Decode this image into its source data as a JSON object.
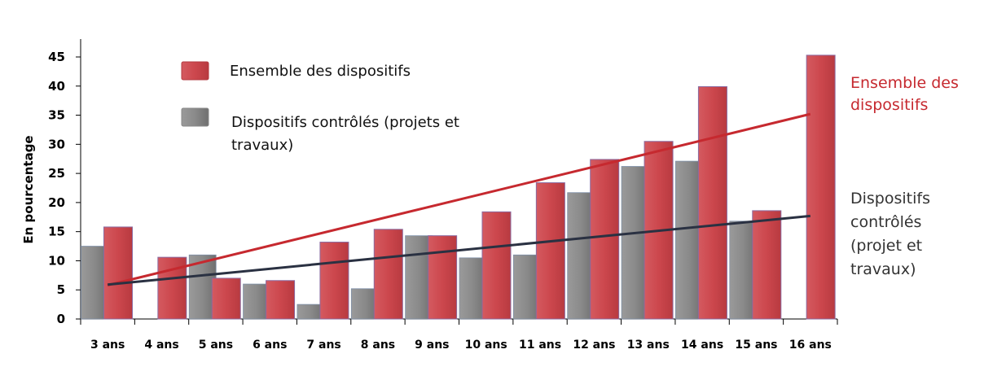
{
  "chart_data": {
    "type": "bar",
    "ylabel": "En pourcentage",
    "xlabel": "",
    "ylim": [
      0,
      45
    ],
    "yticks": [
      0,
      5,
      10,
      15,
      20,
      25,
      30,
      35,
      40,
      45
    ],
    "grid": false,
    "categories": [
      "3 ans",
      "4 ans",
      "5 ans",
      "6 ans",
      "7 ans",
      "8 ans",
      "9 ans",
      "10 ans",
      "11 ans",
      "12 ans",
      "13 ans",
      "14 ans",
      "15 ans",
      "16 ans"
    ],
    "series": [
      {
        "name": "Dispositifs contrôlés (projets et travaux)",
        "color": "#8c8c8c",
        "values": [
          12.5,
          null,
          11,
          6,
          2.5,
          5.2,
          14.3,
          10.5,
          11,
          21.7,
          26.2,
          27.1,
          16.8,
          null
        ]
      },
      {
        "name": "Ensemble des dispositifs",
        "color": "#c9444a",
        "values": [
          15.8,
          10.6,
          7,
          6.6,
          13.2,
          15.4,
          14.3,
          18.4,
          23.4,
          27.4,
          30.5,
          39.9,
          18.6,
          45.3
        ]
      }
    ],
    "trendlines": [
      {
        "series": "Ensemble des dispositifs",
        "color": "#c6292f",
        "start": 5.8,
        "end": 35.2,
        "label_lines": [
          "Ensemble des",
          "dispositifs"
        ]
      },
      {
        "series": "Dispositifs contrôlés",
        "color": "#2a3142",
        "start": 5.9,
        "end": 17.7,
        "label_lines": [
          "Dispositifs",
          "contrôlés",
          "(projet et",
          "travaux)"
        ]
      }
    ],
    "legend": {
      "placement": "top-left",
      "items": [
        {
          "label": "Ensemble des dispositifs",
          "color": "#c9444a"
        },
        {
          "label_lines": [
            "Dispositifs contrôlés (projets et",
            "travaux)"
          ],
          "color": "#8c8c8c"
        }
      ]
    }
  }
}
